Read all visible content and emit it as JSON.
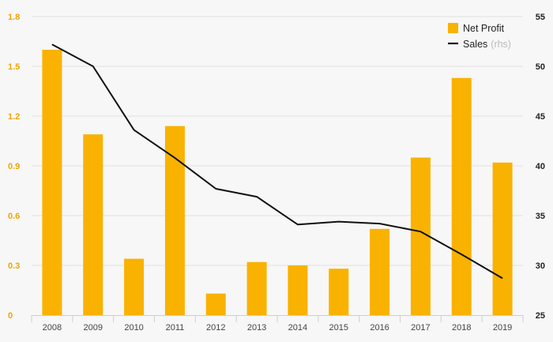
{
  "chart_data": {
    "type": "bar",
    "categories": [
      "2008",
      "2009",
      "2010",
      "2011",
      "2012",
      "2013",
      "2014",
      "2015",
      "2016",
      "2017",
      "2018",
      "2019"
    ],
    "series": [
      {
        "name": "Net Profit",
        "type": "bar",
        "axis": "left",
        "color": "#f9b200",
        "values": [
          1.6,
          1.09,
          0.34,
          1.14,
          0.13,
          0.32,
          0.3,
          0.28,
          0.52,
          0.95,
          1.43,
          0.92
        ]
      },
      {
        "name": "Sales",
        "name_suffix": "(rhs)",
        "type": "line",
        "axis": "right",
        "color": "#111111",
        "values": [
          52.2,
          50.0,
          43.6,
          40.8,
          37.7,
          36.9,
          34.1,
          34.4,
          34.2,
          33.4,
          31.1,
          28.7
        ]
      }
    ],
    "y_left": {
      "ylim": [
        0,
        1.8
      ],
      "ticks": [
        "0",
        "0.3",
        "0.6",
        "0.9",
        "1.2",
        "1.5",
        "1.8"
      ]
    },
    "y_right": {
      "ylim": [
        25,
        55
      ],
      "ticks": [
        "25",
        "30",
        "35",
        "40",
        "45",
        "50",
        "55"
      ]
    },
    "grid": true,
    "legend_position": "top-right",
    "title": "",
    "xlabel": "",
    "ylabel": ""
  }
}
